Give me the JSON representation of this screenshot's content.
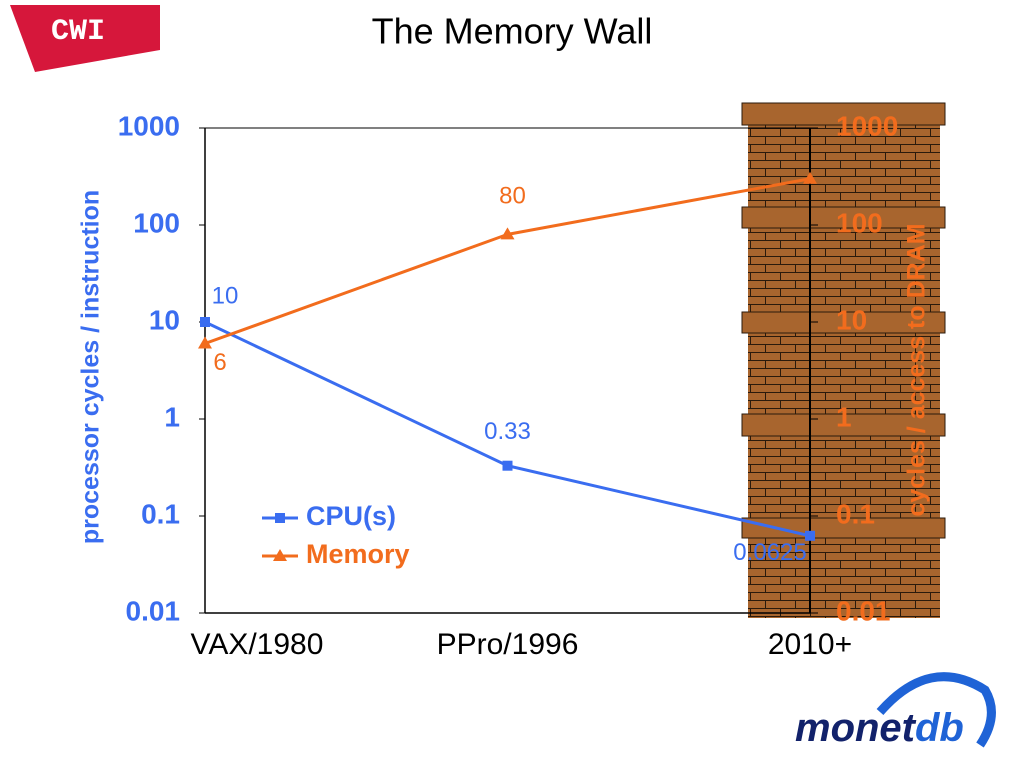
{
  "slide": {
    "title": "The Memory Wall",
    "logo_left": "CWI",
    "logo_right_a": "monet",
    "logo_right_b": "db"
  },
  "chart_data": {
    "type": "line",
    "categories": [
      "VAX/1980",
      "PPro/1996",
      "2010+"
    ],
    "ylabel": "processor cycles / instruction",
    "y2label": "cycles / access to DRAM",
    "log_scale": true,
    "ylim": [
      0.01,
      1000
    ],
    "yticks": [
      1000,
      100,
      10,
      1,
      0.1,
      0.01
    ],
    "y2lim": [
      0.01,
      1000
    ],
    "y2ticks": [
      1000,
      100,
      10,
      1,
      0.1,
      0.01
    ],
    "legend": "bottom-left",
    "series": [
      {
        "name": "CPU(s)",
        "color": "#3a6df0",
        "marker": "square",
        "values": [
          10,
          0.33,
          0.0625
        ],
        "value_labels": [
          "10",
          "0.33",
          "0.0625"
        ]
      },
      {
        "name": "Memory",
        "color": "#f26c1d",
        "marker": "triangle",
        "axis": "y2",
        "values": [
          6,
          80,
          300
        ],
        "value_labels": [
          "6",
          "80",
          null
        ]
      }
    ]
  }
}
